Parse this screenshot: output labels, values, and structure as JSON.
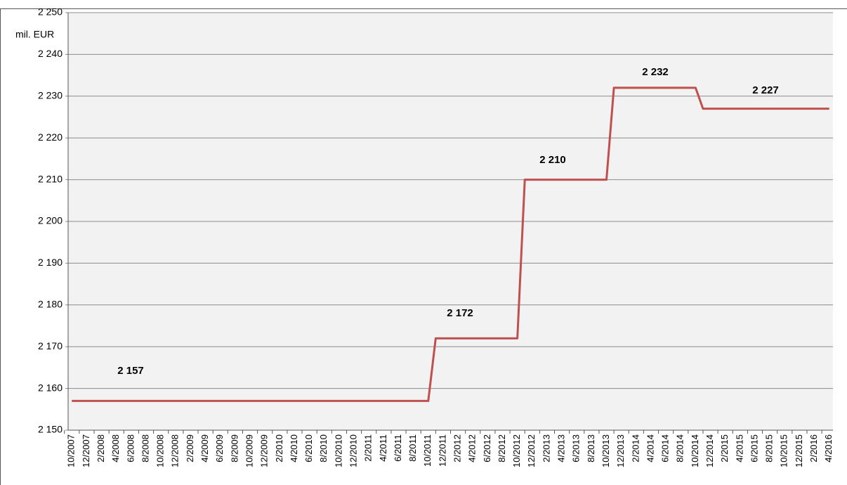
{
  "chart_data": {
    "type": "line",
    "y_label": "mil. EUR",
    "categories": [
      "10/2007",
      null,
      "12/2007",
      null,
      "2/2008",
      null,
      "4/2008",
      null,
      "6/2008",
      null,
      "8/2008",
      null,
      "10/2008",
      null,
      "12/2008",
      null,
      "2/2009",
      null,
      "4/2009",
      null,
      "6/2009",
      null,
      "8/2009",
      null,
      "10/2009",
      null,
      "12/2009",
      null,
      "2/2010",
      null,
      "4/2010",
      null,
      "6/2010",
      null,
      "8/2010",
      null,
      "10/2010",
      null,
      "12/2010",
      null,
      "2/2011",
      null,
      "4/2011",
      null,
      "6/2011",
      null,
      "8/2011",
      null,
      "10/2011",
      null,
      "12/2011",
      null,
      "2/2012",
      null,
      "4/2012",
      null,
      "6/2012",
      null,
      "8/2012",
      null,
      "10/2012",
      null,
      "12/2012",
      null,
      "2/2013",
      null,
      "4/2013",
      null,
      "6/2013",
      null,
      "8/2013",
      null,
      "10/2013",
      null,
      "12/2013",
      null,
      "2/2014",
      null,
      "4/2014",
      null,
      "6/2014",
      null,
      "8/2014",
      null,
      "10/2014",
      null,
      "12/2014",
      null,
      "2/2015",
      null,
      "4/2015",
      null,
      "6/2015",
      null,
      "8/2015",
      null,
      "10/2015",
      null,
      "12/2015",
      null,
      "2/2016",
      null,
      "4/2016"
    ],
    "series": [
      {
        "color": "#c0504d",
        "values": [
          2157,
          2157,
          2157,
          2157,
          2157,
          2157,
          2157,
          2157,
          2157,
          2157,
          2157,
          2157,
          2157,
          2157,
          2157,
          2157,
          2157,
          2157,
          2157,
          2157,
          2157,
          2157,
          2157,
          2157,
          2157,
          2157,
          2157,
          2157,
          2157,
          2157,
          2157,
          2157,
          2157,
          2157,
          2157,
          2157,
          2157,
          2157,
          2157,
          2157,
          2157,
          2157,
          2157,
          2157,
          2157,
          2157,
          2157,
          2157,
          2157,
          2172,
          2172,
          2172,
          2172,
          2172,
          2172,
          2172,
          2172,
          2172,
          2172,
          2172,
          2172,
          2210,
          2210,
          2210,
          2210,
          2210,
          2210,
          2210,
          2210,
          2210,
          2210,
          2210,
          2210,
          2232,
          2232,
          2232,
          2232,
          2232,
          2232,
          2232,
          2232,
          2232,
          2232,
          2232,
          2232,
          2227,
          2227,
          2227,
          2227,
          2227,
          2227,
          2227,
          2227,
          2227,
          2227,
          2227,
          2227,
          2227,
          2227,
          2227,
          2227,
          2227,
          2227
        ]
      }
    ],
    "annotations": [
      "2 157",
      "2 172",
      "2 210",
      "2 232",
      "2 227"
    ],
    "ylim": [
      2150,
      2250
    ],
    "yticks": [
      {
        "value": 2150,
        "label": "2 150"
      },
      {
        "value": 2160,
        "label": "2 160"
      },
      {
        "value": 2170,
        "label": "2 170"
      },
      {
        "value": 2180,
        "label": "2 180"
      },
      {
        "value": 2190,
        "label": "2 190"
      },
      {
        "value": 2200,
        "label": "2 200"
      },
      {
        "value": 2210,
        "label": "2 210"
      },
      {
        "value": 2220,
        "label": "2 220"
      },
      {
        "value": 2230,
        "label": "2 230"
      },
      {
        "value": 2240,
        "label": "2 240"
      },
      {
        "value": 2250,
        "label": "2 250"
      }
    ],
    "grid": true
  }
}
